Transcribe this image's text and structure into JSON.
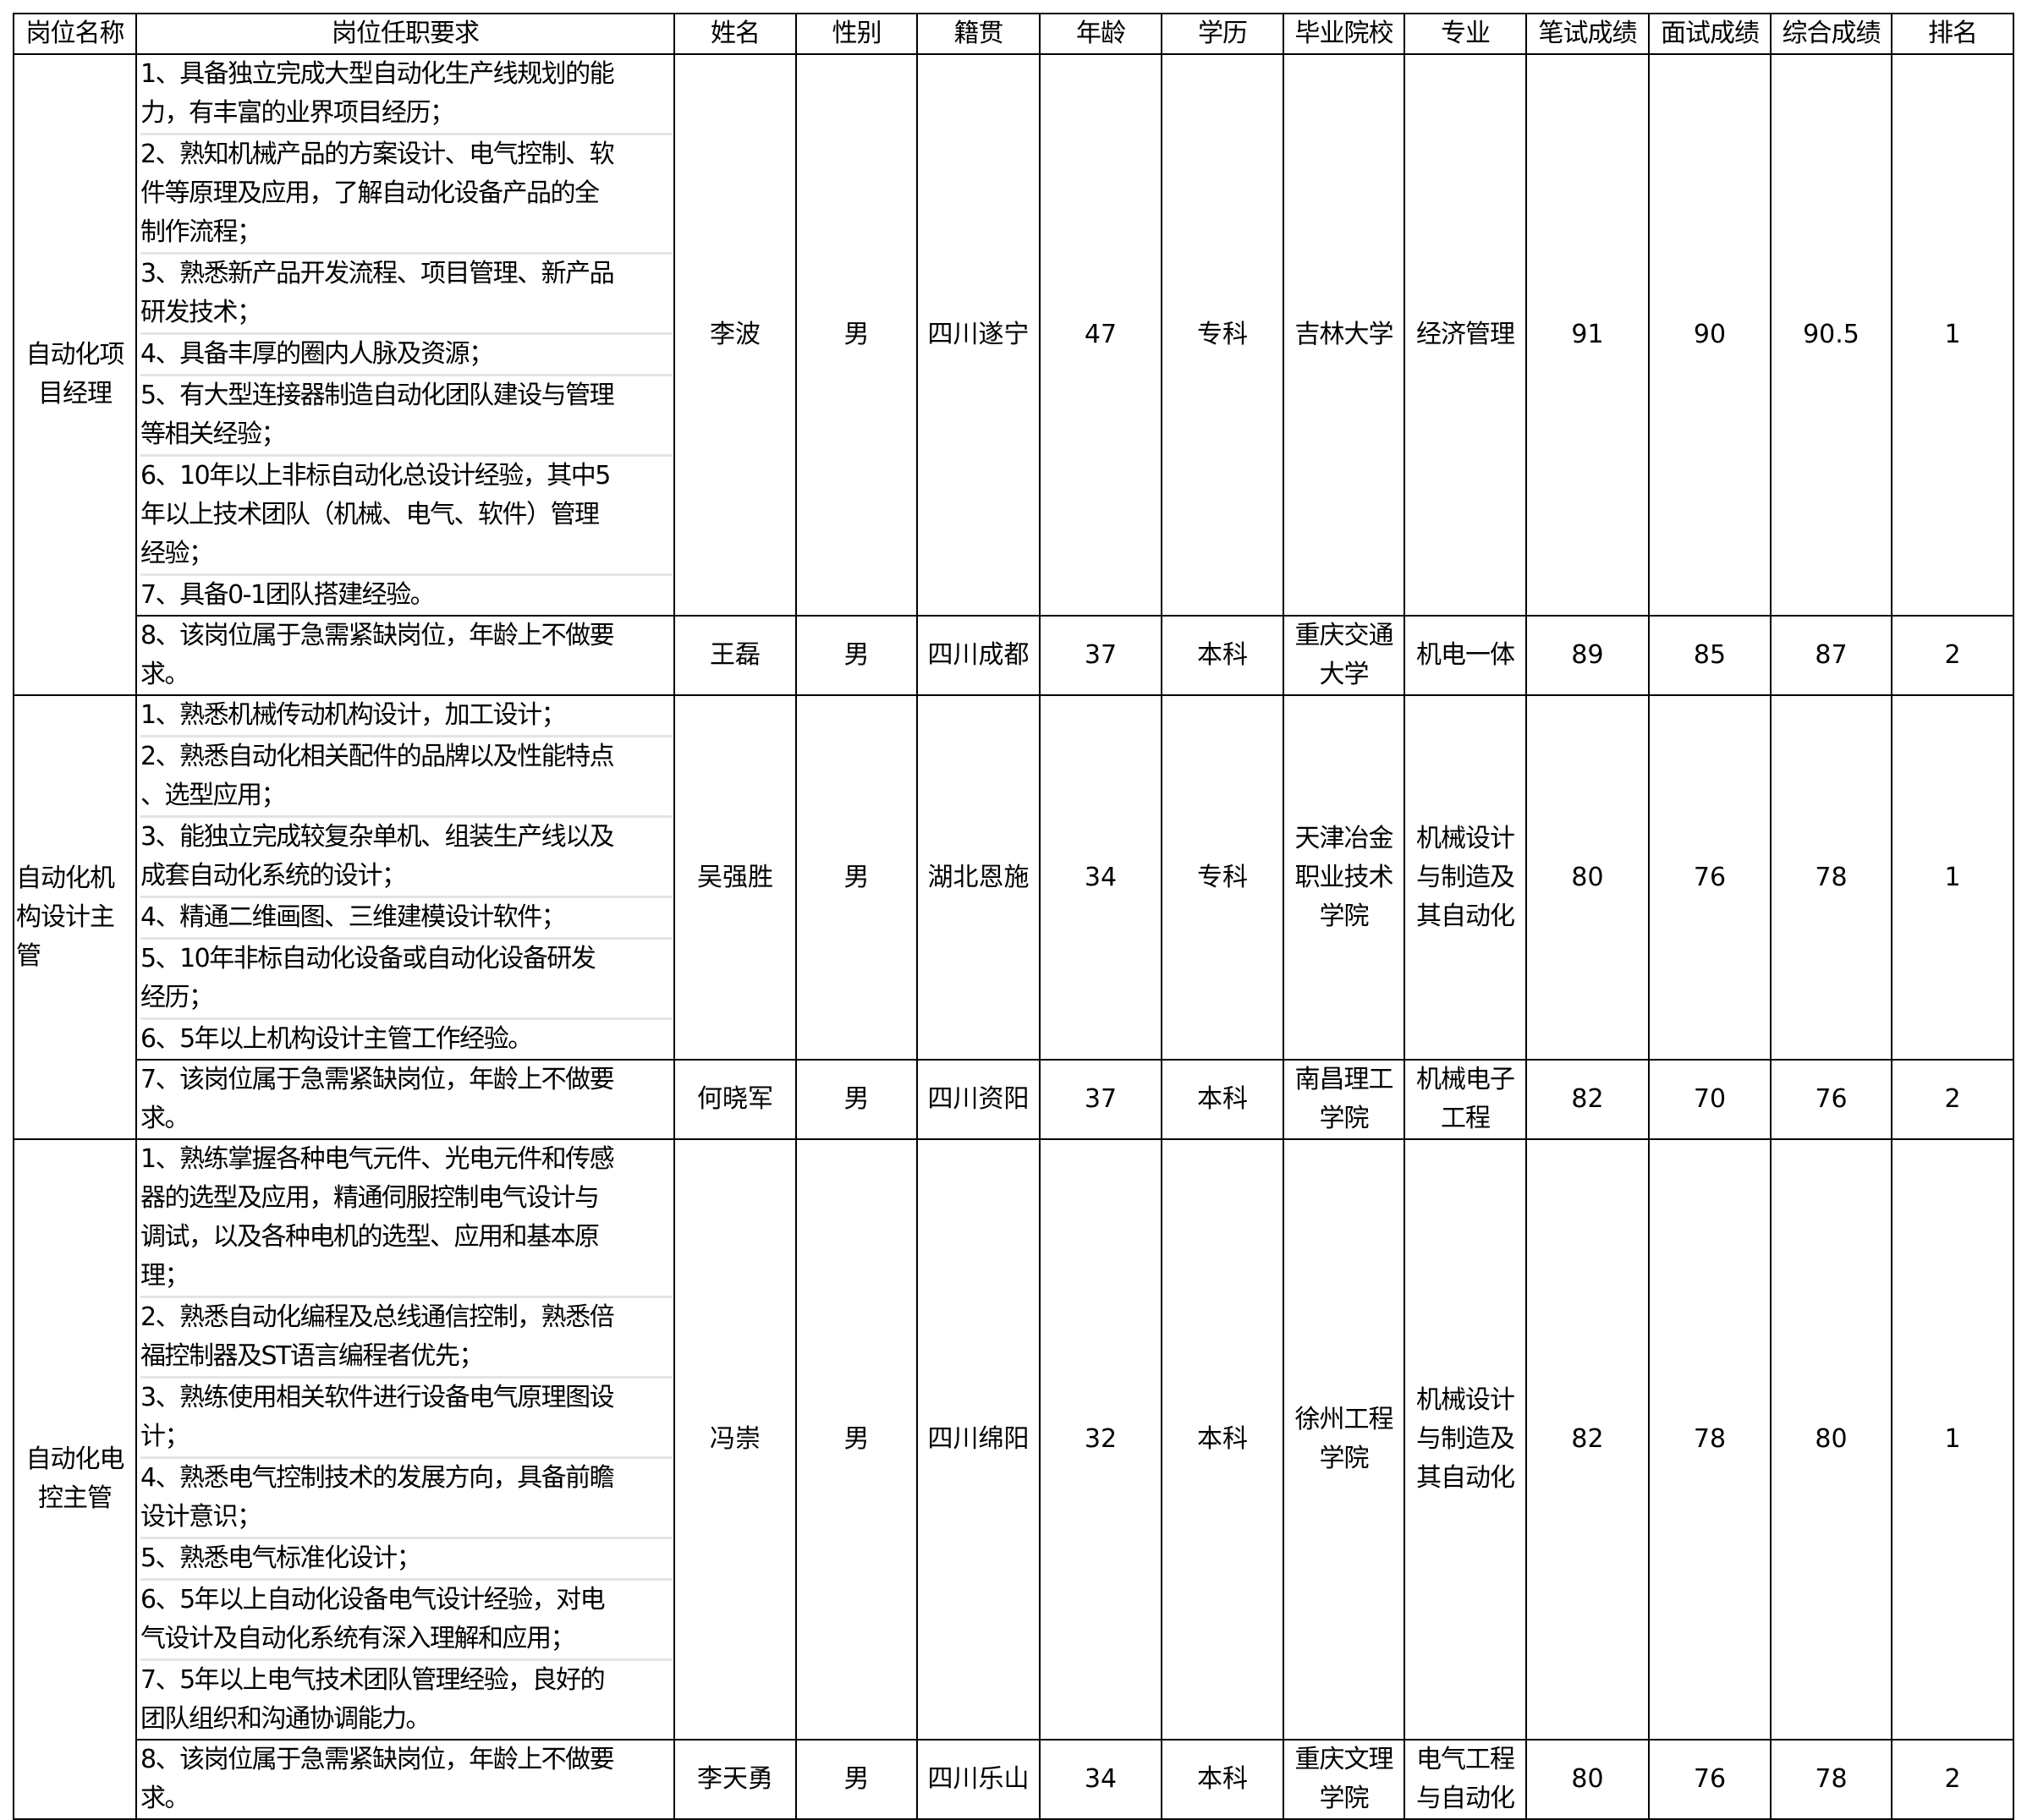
{
  "headers": [
    "岗位名称",
    "岗位任职要求",
    "姓名",
    "性别",
    "籍贯",
    "年龄",
    "学历",
    "毕业院校",
    "专业",
    "笔试成绩",
    "面试成绩",
    "综合成绩",
    "排名"
  ],
  "positions": [
    {
      "name_lines": [
        "自动化项",
        "目经理"
      ],
      "align": "center",
      "candidates": [
        {
          "requirements": [
            [
              "1、具备独立完成大型自动化生产线规划的能",
              "力，有丰富的业界项目经历；"
            ],
            [
              "2、熟知机械产品的方案设计、电气控制、软",
              "件等原理及应用，了解自动化设备产品的全",
              "制作流程；"
            ],
            [
              "3、熟悉新产品开发流程、项目管理、新产品",
              "研发技术；"
            ],
            [
              "4、具备丰厚的圈内人脉及资源；"
            ],
            [
              "5、有大型连接器制造自动化团队建设与管理",
              "等相关经验；"
            ],
            [
              "6、10年以上非标自动化总设计经验，其中5",
              "年以上技术团队（机械、电气、软件）管理",
              "经验；"
            ],
            [
              "7、具备0-1团队搭建经验。"
            ]
          ],
          "name": "李波",
          "gender": "男",
          "origin": "四川遂宁",
          "age": "47",
          "education": "专科",
          "school": [
            "吉林大学"
          ],
          "major": [
            "经济管理"
          ],
          "written": "91",
          "interview": "90",
          "total": "90.5",
          "rank": "1"
        },
        {
          "requirements": [
            [
              "8、该岗位属于急需紧缺岗位，年龄上不做要",
              "求。"
            ]
          ],
          "name": "王磊",
          "gender": "男",
          "origin": "四川成都",
          "age": "37",
          "education": "本科",
          "school": [
            "重庆交通",
            "大学"
          ],
          "major": [
            "机电一体"
          ],
          "written": "89",
          "interview": "85",
          "total": "87",
          "rank": "2"
        }
      ]
    },
    {
      "name_lines": [
        "自动化机",
        "构设计主",
        "管"
      ],
      "align": "left",
      "candidates": [
        {
          "requirements": [
            [
              "1、熟悉机械传动机构设计，加工设计；"
            ],
            [
              "2、熟悉自动化相关配件的品牌以及性能特点",
              "、选型应用；"
            ],
            [
              "3、能独立完成较复杂单机、组装生产线以及",
              "成套自动化系统的设计；"
            ],
            [
              "4、精通二维画图、三维建模设计软件；"
            ],
            [
              "5、10年非标自动化设备或自动化设备研发",
              "经历；"
            ],
            [
              "6、5年以上机构设计主管工作经验。"
            ]
          ],
          "name": "吴强胜",
          "gender": "男",
          "origin": "湖北恩施",
          "age": "34",
          "education": "专科",
          "school": [
            "天津冶金",
            "职业技术",
            "学院"
          ],
          "major": [
            "机械设计",
            "与制造及",
            "其自动化"
          ],
          "written": "80",
          "interview": "76",
          "total": "78",
          "rank": "1"
        },
        {
          "requirements": [
            [
              "7、该岗位属于急需紧缺岗位，年龄上不做要",
              "求。"
            ]
          ],
          "name": "何晓军",
          "gender": "男",
          "origin": "四川资阳",
          "age": "37",
          "education": "本科",
          "school": [
            "南昌理工",
            "学院"
          ],
          "major": [
            "机械电子",
            "工程"
          ],
          "written": "82",
          "interview": "70",
          "total": "76",
          "rank": "2"
        }
      ]
    },
    {
      "name_lines": [
        "自动化电",
        "控主管"
      ],
      "align": "center",
      "candidates": [
        {
          "requirements": [
            [
              "1、熟练掌握各种电气元件、光电元件和传感",
              "器的选型及应用，精通伺服控制电气设计与",
              "调试，以及各种电机的选型、应用和基本原",
              "理；"
            ],
            [
              "2、熟悉自动化编程及总线通信控制，熟悉倍",
              "福控制器及ST语言编程者优先；"
            ],
            [
              "3、熟练使用相关软件进行设备电气原理图设",
              "计；"
            ],
            [
              "4、熟悉电气控制技术的发展方向，具备前瞻",
              "设计意识；"
            ],
            [
              "5、熟悉电气标准化设计；"
            ],
            [
              "6、5年以上自动化设备电气设计经验，对电",
              "气设计及自动化系统有深入理解和应用；"
            ],
            [
              "7、5年以上电气技术团队管理经验，良好的",
              "团队组织和沟通协调能力。"
            ]
          ],
          "name": "冯崇",
          "gender": "男",
          "origin": "四川绵阳",
          "age": "32",
          "education": "本科",
          "school": [
            "徐州工程",
            "学院"
          ],
          "major": [
            "机械设计",
            "与制造及",
            "其自动化"
          ],
          "written": "82",
          "interview": "78",
          "total": "80",
          "rank": "1"
        },
        {
          "requirements": [
            [
              "8、该岗位属于急需紧缺岗位，年龄上不做要",
              "求。"
            ]
          ],
          "name": "李天勇",
          "gender": "男",
          "origin": "四川乐山",
          "age": "34",
          "education": "本科",
          "school": [
            "重庆文理",
            "学院"
          ],
          "major": [
            "电气工程",
            "与自动化"
          ],
          "written": "80",
          "interview": "76",
          "total": "78",
          "rank": "2"
        }
      ]
    }
  ]
}
